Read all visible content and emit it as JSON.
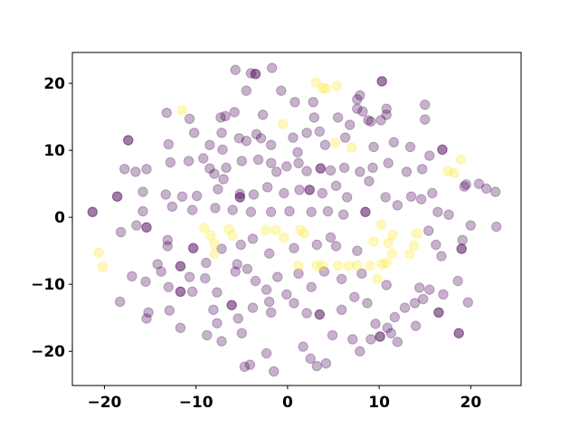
{
  "chart_data": {
    "type": "scatter",
    "title": "",
    "xlabel": "",
    "ylabel": "",
    "xlim": [
      -23.5,
      25.5
    ],
    "ylim": [
      -25.1,
      24.6
    ],
    "grid": false,
    "x_ticks": [
      -20,
      -10,
      0,
      10,
      20
    ],
    "y_ticks": [
      -20,
      -10,
      0,
      10,
      20
    ],
    "x_tick_labels": [
      "−20",
      "−10",
      "0",
      "10",
      "20"
    ],
    "y_tick_labels": [
      "−20",
      "−10",
      "0",
      "10",
      "20"
    ],
    "marker_alpha": 0.3,
    "series": [
      {
        "color": "#440154",
        "points": [
          [
            -5.7,
            22
          ],
          [
            -4,
            21.5
          ],
          [
            -3.5,
            21.4
          ],
          [
            -3.5,
            21.4
          ],
          [
            -1.7,
            22.3
          ],
          [
            -4.5,
            18.9
          ],
          [
            -0.7,
            18.9
          ],
          [
            10.3,
            20.3
          ],
          [
            10.3,
            20.3
          ],
          [
            -13.2,
            15.6
          ],
          [
            -10.7,
            14.7
          ],
          [
            -10.2,
            12.6
          ],
          [
            -7.3,
            14.9
          ],
          [
            -6.8,
            15.1
          ],
          [
            -5.8,
            15.7
          ],
          [
            -2.7,
            15.3
          ],
          [
            0.8,
            17.2
          ],
          [
            2.8,
            17.2
          ],
          [
            7.6,
            17.6
          ],
          [
            7.9,
            18.2
          ],
          [
            7.6,
            16.2
          ],
          [
            10.8,
            16.2
          ],
          [
            15,
            16.8
          ],
          [
            15,
            14.6
          ],
          [
            8.2,
            15.8
          ],
          [
            8.8,
            14.5
          ],
          [
            2.9,
            14.9
          ],
          [
            5.5,
            14.9
          ],
          [
            3.5,
            12.8
          ],
          [
            6.8,
            13.8
          ],
          [
            9.1,
            14.3
          ],
          [
            10.8,
            15.3
          ],
          [
            10.2,
            14.5
          ],
          [
            -17.4,
            11.5
          ],
          [
            -17.4,
            11.5
          ],
          [
            -13,
            10.9
          ],
          [
            -8.5,
            10.8
          ],
          [
            -7.2,
            12.6
          ],
          [
            -7.1,
            10.1
          ],
          [
            -5.3,
            11.8
          ],
          [
            -4.5,
            11.4
          ],
          [
            -3.4,
            12.4
          ],
          [
            -2.9,
            11.8
          ],
          [
            -1.8,
            10.8
          ],
          [
            0.6,
            11.9
          ],
          [
            2.1,
            12.6
          ],
          [
            1.1,
            9.7
          ],
          [
            4.1,
            10.8
          ],
          [
            6.3,
            11.9
          ],
          [
            9.4,
            10.5
          ],
          [
            11.6,
            11.2
          ],
          [
            13.4,
            10.5
          ],
          [
            16.9,
            10.1
          ],
          [
            16.9,
            10.1
          ],
          [
            15.5,
            9.2
          ],
          [
            11,
            8.1
          ],
          [
            -17.8,
            7.2
          ],
          [
            -16.6,
            6.8
          ],
          [
            -15.4,
            7.2
          ],
          [
            -12.8,
            8.2
          ],
          [
            -10.8,
            8.4
          ],
          [
            -9.2,
            8.8
          ],
          [
            -8.5,
            7.3
          ],
          [
            -8,
            6.5
          ],
          [
            -6.7,
            7.4
          ],
          [
            -5,
            8.4
          ],
          [
            -3.2,
            8.6
          ],
          [
            -1.8,
            8.1
          ],
          [
            -1.2,
            6.8
          ],
          [
            -0.1,
            7.6
          ],
          [
            1.2,
            8.1
          ],
          [
            2.1,
            6.9
          ],
          [
            3.6,
            7.3
          ],
          [
            3.6,
            7.3
          ],
          [
            4.7,
            7
          ],
          [
            6.2,
            7.4
          ],
          [
            7.9,
            6.8
          ],
          [
            9.3,
            7.4
          ],
          [
            13,
            6.8
          ],
          [
            14.7,
            7.2
          ],
          [
            19.5,
            4.9
          ],
          [
            20.9,
            5
          ],
          [
            21.7,
            4.3
          ],
          [
            22.7,
            3.8
          ],
          [
            -18.6,
            3.1
          ],
          [
            -18.6,
            3.1
          ],
          [
            -15.8,
            3.8
          ],
          [
            -13.3,
            3.4
          ],
          [
            -11.5,
            3.1
          ],
          [
            -9.9,
            3.2
          ],
          [
            -7.6,
            4.2
          ],
          [
            -7,
            5.7
          ],
          [
            -5.2,
            3.5
          ],
          [
            -5.2,
            3
          ],
          [
            -5.2,
            3
          ],
          [
            -3.7,
            3.4
          ],
          [
            -2.2,
            4.5
          ],
          [
            -0.4,
            3.6
          ],
          [
            1.3,
            4.1
          ],
          [
            2.4,
            4.1
          ],
          [
            2.4,
            4.1
          ],
          [
            3.8,
            3.6
          ],
          [
            5.3,
            4.7
          ],
          [
            6.5,
            3
          ],
          [
            8.9,
            5.4
          ],
          [
            10.7,
            3
          ],
          [
            13.5,
            3.1
          ],
          [
            14.6,
            2.7
          ],
          [
            15.8,
            3.6
          ],
          [
            19.3,
            4.6
          ],
          [
            -15.8,
            0.9
          ],
          [
            -21.3,
            0.8
          ],
          [
            -21.3,
            0.8
          ],
          [
            -12.6,
            1.6
          ],
          [
            -10.4,
            1.1
          ],
          [
            -7.9,
            1.4
          ],
          [
            -6,
            1.1
          ],
          [
            -4,
            0.8
          ],
          [
            -1.8,
            0.8
          ],
          [
            0.2,
            0.9
          ],
          [
            2.6,
            0.8
          ],
          [
            4.4,
            0.9
          ],
          [
            6.1,
            0.4
          ],
          [
            8.5,
            0.8
          ],
          [
            8.5,
            0.8
          ],
          [
            12,
            1.8
          ],
          [
            16.4,
            0.8
          ],
          [
            17.6,
            0.4
          ],
          [
            20,
            -1.2
          ],
          [
            22.8,
            -1.4
          ],
          [
            -18.2,
            -2.2
          ],
          [
            -16.5,
            -1.2
          ],
          [
            -15.4,
            -1.5
          ],
          [
            -15.4,
            -1.5
          ],
          [
            -13.1,
            -3.4
          ],
          [
            -13.1,
            -4.3
          ],
          [
            -10.3,
            -4.6
          ],
          [
            -10.3,
            -4.6
          ],
          [
            -7.2,
            -4.7
          ],
          [
            -5.1,
            -4.1
          ],
          [
            -3.8,
            -3.2
          ],
          [
            -2,
            -5.4
          ],
          [
            0.7,
            -4.6
          ],
          [
            3.2,
            -4.1
          ],
          [
            4.7,
            -3
          ],
          [
            5.3,
            -4.3
          ],
          [
            7.6,
            -5
          ],
          [
            16.2,
            -4.1
          ],
          [
            19.1,
            -3.4
          ],
          [
            19,
            -4.7
          ],
          [
            19,
            -4.7
          ],
          [
            16.8,
            -5.8
          ],
          [
            15.4,
            -2
          ],
          [
            -18.3,
            -12.6
          ],
          [
            -17,
            -8.8
          ],
          [
            -15.5,
            -9.6
          ],
          [
            -14.2,
            -7
          ],
          [
            -13.8,
            -8.1
          ],
          [
            -13,
            -10.4
          ],
          [
            -11.7,
            -7.3
          ],
          [
            -11.7,
            -7.3
          ],
          [
            -10.7,
            -8.9
          ],
          [
            -11.7,
            -11.1
          ],
          [
            -11.7,
            -11.1
          ],
          [
            -10.4,
            -11.1
          ],
          [
            -8.9,
            -6.8
          ],
          [
            -9,
            -9.1
          ],
          [
            -7.7,
            -11.2
          ],
          [
            -5.7,
            -8.1
          ],
          [
            -5.5,
            -7
          ],
          [
            -4.4,
            -7.7
          ],
          [
            -3.5,
            -9.5
          ],
          [
            -2.3,
            -10.8
          ],
          [
            -1.1,
            -8.9
          ],
          [
            -0.1,
            -11.5
          ],
          [
            1.2,
            -8.4
          ],
          [
            2.6,
            -10.4
          ],
          [
            4,
            -8.1
          ],
          [
            5.9,
            -9.2
          ],
          [
            8.1,
            -8.4
          ],
          [
            10.8,
            -10.1
          ],
          [
            15.5,
            -10.8
          ],
          [
            17,
            -11.5
          ],
          [
            18.6,
            -9.5
          ],
          [
            19.7,
            -12.7
          ],
          [
            13.9,
            -12.8
          ],
          [
            14.4,
            -10.5
          ],
          [
            -15.2,
            -14.2
          ],
          [
            -15.4,
            -15.1
          ],
          [
            -12.9,
            -13.9
          ],
          [
            -11.7,
            -16.5
          ],
          [
            -8.1,
            -13.8
          ],
          [
            -6.1,
            -13.1
          ],
          [
            -6.1,
            -13.1
          ],
          [
            -5.4,
            -15.1
          ],
          [
            -3.8,
            -13.5
          ],
          [
            -2,
            -12.6
          ],
          [
            -1.8,
            -14.2
          ],
          [
            0.7,
            -12.8
          ],
          [
            2.1,
            -14.3
          ],
          [
            3.5,
            -14.5
          ],
          [
            3.5,
            -14.5
          ],
          [
            5.9,
            -13.8
          ],
          [
            7.3,
            -11.9
          ],
          [
            8.7,
            -12.8
          ],
          [
            9.6,
            -15.9
          ],
          [
            11.7,
            -14.9
          ],
          [
            12.8,
            -13.5
          ],
          [
            14.8,
            -12.2
          ],
          [
            16.5,
            -14.2
          ],
          [
            16.5,
            -14.2
          ],
          [
            18.7,
            -17.3
          ],
          [
            18.7,
            -17.3
          ],
          [
            -8.8,
            -17.6
          ],
          [
            -7.2,
            -18.5
          ],
          [
            -7.7,
            -15.8
          ],
          [
            -5,
            -17.3
          ],
          [
            -4.7,
            -22.3
          ],
          [
            -4.1,
            -22
          ],
          [
            -1.5,
            -23
          ],
          [
            -2.3,
            -20.3
          ],
          [
            1.7,
            -19.3
          ],
          [
            2.5,
            -21.1
          ],
          [
            3.2,
            -22.2
          ],
          [
            4.2,
            -21.8
          ],
          [
            4.9,
            -17.6
          ],
          [
            7.1,
            -18.2
          ],
          [
            7.9,
            -20
          ],
          [
            9.1,
            -18.2
          ],
          [
            10.1,
            -17.8
          ],
          [
            10.1,
            -17.8
          ],
          [
            11.3,
            -17.3
          ],
          [
            12,
            -18.6
          ],
          [
            10.9,
            -16.5
          ],
          [
            14,
            -16.2
          ]
        ]
      },
      {
        "color": "#fde725",
        "points": [
          [
            -11.5,
            16
          ],
          [
            -0.5,
            13.9
          ],
          [
            3.1,
            20.1
          ],
          [
            3.8,
            19.3
          ],
          [
            4.2,
            19.2
          ],
          [
            5.4,
            19.6
          ],
          [
            5.2,
            11.1
          ],
          [
            7,
            10.4
          ],
          [
            18.9,
            8.6
          ],
          [
            17.5,
            6.9
          ],
          [
            18.2,
            6.6
          ],
          [
            -20.6,
            -5.3
          ],
          [
            -20.2,
            -7.4
          ],
          [
            -9.1,
            -1.6
          ],
          [
            -8.4,
            -2.7
          ],
          [
            -8,
            -3.9
          ],
          [
            -8,
            -5.4
          ],
          [
            -6.4,
            -1.8
          ],
          [
            -6,
            -2.7
          ],
          [
            -2.4,
            -1.9
          ],
          [
            -1.3,
            -1.9
          ],
          [
            -0.4,
            -3
          ],
          [
            1.4,
            -1.9
          ],
          [
            1.8,
            -2.4
          ],
          [
            10.2,
            -1.1
          ],
          [
            9.4,
            -3.6
          ],
          [
            11.5,
            -2.6
          ],
          [
            11,
            -3.8
          ],
          [
            11.4,
            -5.4
          ],
          [
            14.1,
            -2.4
          ],
          [
            13.8,
            -4.2
          ],
          [
            13.3,
            -5.5
          ],
          [
            5.5,
            -7.2
          ],
          [
            6.7,
            -7.2
          ],
          [
            7.6,
            -7.2
          ],
          [
            3.8,
            -7.2
          ],
          [
            3.2,
            -7.2
          ],
          [
            1.2,
            -7.2
          ],
          [
            9,
            -7.2
          ],
          [
            10.3,
            -7
          ],
          [
            10.8,
            -6.8
          ],
          [
            9.8,
            -9.2
          ]
        ]
      }
    ]
  }
}
